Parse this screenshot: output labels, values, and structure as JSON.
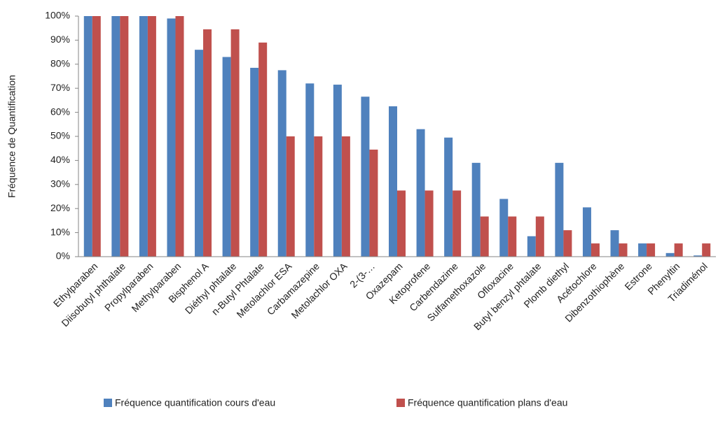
{
  "chart_data": {
    "type": "bar",
    "y_label": "Fréquence de Quantification",
    "categories": [
      "Ethylparaben",
      "Diisobutyl phthalate",
      "Propylparaben",
      "Methylparaben",
      "Bisphenol A",
      "Diéthyl phtalate",
      "n-Butyl Phtalate",
      "Metolachlor ESA",
      "Carbamazepine",
      "Metolachlor OXA",
      "2-(3-…",
      "Oxazepam",
      "Ketoprofene",
      "Carbendazime",
      "Sulfamethoxazole",
      "Ofloxacine",
      "Butyl benzyl phtalate",
      "Plomb diethyl",
      "Acétochlore",
      "Dibenzothiophène",
      "Estrone",
      "Phenyltin",
      "Triadiménol"
    ],
    "series": [
      {
        "name": "Fréquence quantification cours d'eau",
        "color": "#4f81bd",
        "values": [
          100,
          100,
          100,
          99,
          86,
          83,
          78.5,
          77.5,
          72,
          71.5,
          66.5,
          62.5,
          53,
          49.5,
          39,
          24,
          8.5,
          39,
          20.5,
          11,
          5.5,
          1.5,
          0.5
        ]
      },
      {
        "name": "Fréquence quantification plans d'eau",
        "color": "#c0504d",
        "values": [
          100,
          100,
          100,
          100,
          94.5,
          94.5,
          89,
          50,
          50,
          50,
          44.5,
          27.5,
          27.5,
          27.5,
          16.7,
          16.7,
          16.7,
          11,
          5.5,
          5.5,
          5.5,
          5.5,
          5.5
        ]
      }
    ],
    "ylim": [
      0,
      100
    ],
    "yticks": [
      {
        "value": 0,
        "label": "0%"
      },
      {
        "value": 10,
        "label": "10%"
      },
      {
        "value": 20,
        "label": "20%"
      },
      {
        "value": 30,
        "label": "30%"
      },
      {
        "value": 40,
        "label": "40%"
      },
      {
        "value": 50,
        "label": "50%"
      },
      {
        "value": 60,
        "label": "60%"
      },
      {
        "value": 70,
        "label": "70%"
      },
      {
        "value": 80,
        "label": "80%"
      },
      {
        "value": 90,
        "label": "90%"
      },
      {
        "value": 100,
        "label": "100%"
      }
    ],
    "grid": false,
    "legend": "bottom"
  }
}
